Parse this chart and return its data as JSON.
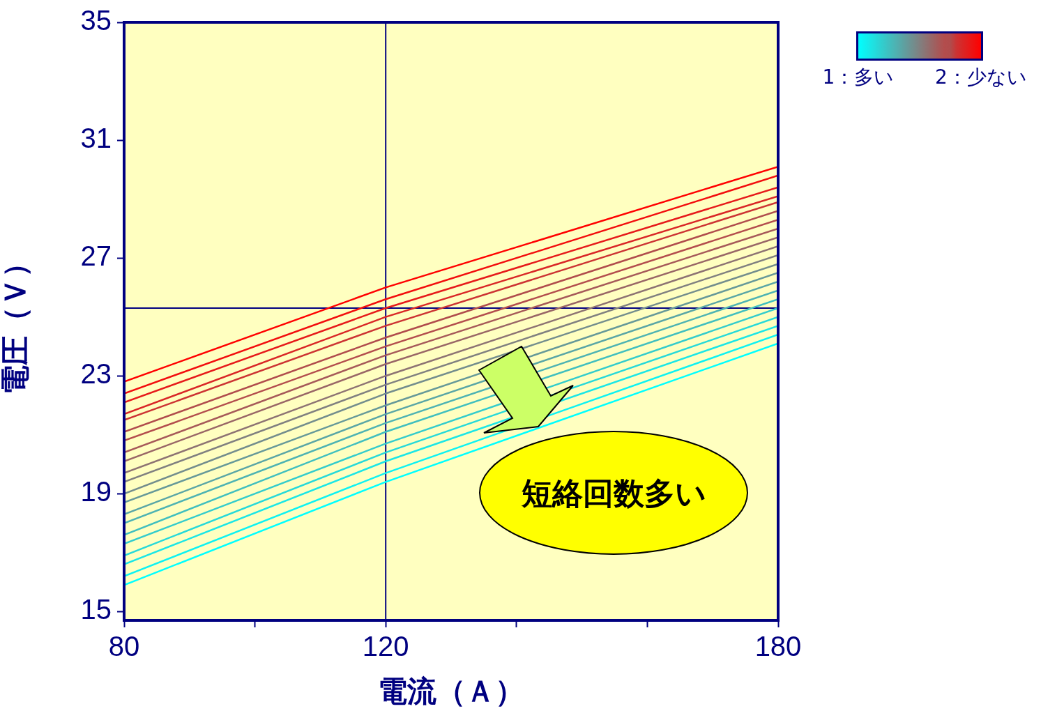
{
  "chart_data": {
    "type": "line",
    "xlabel": "電流（Ａ）",
    "ylabel": "電圧（Ｖ）",
    "x": [
      80,
      120,
      180
    ],
    "xlim": [
      80,
      180
    ],
    "xticks": [
      80,
      {
        "value": 100,
        "label": null
      },
      120,
      {
        "value": 140,
        "label": null
      },
      {
        "value": 160,
        "label": null
      },
      180
    ],
    "ylim": [
      14.7,
      35
    ],
    "yticks": [
      15,
      19,
      23,
      27,
      31,
      35
    ],
    "grid": false,
    "legend": false,
    "marker": "none",
    "line_style": "solid",
    "clim": [
      1,
      2
    ],
    "cticks": [
      {
        "value": 1,
        "label": "1：多い"
      },
      {
        "value": 2,
        "label": "2：少ない"
      }
    ],
    "ref_lines": [
      {
        "axis": "x",
        "value": 120,
        "color": "#000080"
      },
      {
        "axis": "y",
        "value": 25.3,
        "color": "#000080"
      }
    ],
    "annotations": [
      "短絡回数多い"
    ],
    "series": [
      {
        "color": "#ff0000",
        "values": [
          22.8,
          26.0,
          30.1
        ]
      },
      {
        "color": "#f20d0d",
        "values": [
          22.4,
          25.6,
          29.8
        ]
      },
      {
        "color": "#e61a1a",
        "values": [
          22.1,
          25.3,
          29.4
        ]
      },
      {
        "color": "#d92626",
        "values": [
          21.7,
          25.0,
          29.1
        ]
      },
      {
        "color": "#cc3333",
        "values": [
          21.5,
          24.7,
          28.9
        ]
      },
      {
        "color": "#b04c4c",
        "values": [
          21.1,
          24.3,
          28.6
        ]
      },
      {
        "color": "#b34d4d",
        "values": [
          20.8,
          24.0,
          28.3
        ]
      },
      {
        "color": "#a65959",
        "values": [
          20.4,
          23.7,
          28.0
        ]
      },
      {
        "color": "#996666",
        "values": [
          20.1,
          23.4,
          27.7
        ]
      },
      {
        "color": "#8d7373",
        "values": [
          19.7,
          23.0,
          27.4
        ]
      },
      {
        "color": "#808080",
        "values": [
          19.4,
          22.7,
          27.1
        ]
      },
      {
        "color": "#738d8d",
        "values": [
          19.0,
          22.4,
          26.8
        ]
      },
      {
        "color": "#669999",
        "values": [
          18.7,
          22.0,
          26.5
        ]
      },
      {
        "color": "#59a6a6",
        "values": [
          18.3,
          21.7,
          26.2
        ]
      },
      {
        "color": "#4db3b3",
        "values": [
          18.0,
          21.4,
          25.9
        ]
      },
      {
        "color": "#40bfbf",
        "values": [
          17.6,
          21.1,
          25.6
        ]
      },
      {
        "color": "#33cccc",
        "values": [
          17.3,
          20.7,
          25.3
        ]
      },
      {
        "color": "#26d9d9",
        "values": [
          16.9,
          20.4,
          25.0
        ]
      },
      {
        "color": "#1ae6e6",
        "values": [
          16.6,
          20.1,
          24.7
        ]
      },
      {
        "color": "#0df2f2",
        "values": [
          16.2,
          19.7,
          24.4
        ]
      },
      {
        "color": "#00ffff",
        "values": [
          15.9,
          19.4,
          24.1
        ]
      }
    ]
  }
}
